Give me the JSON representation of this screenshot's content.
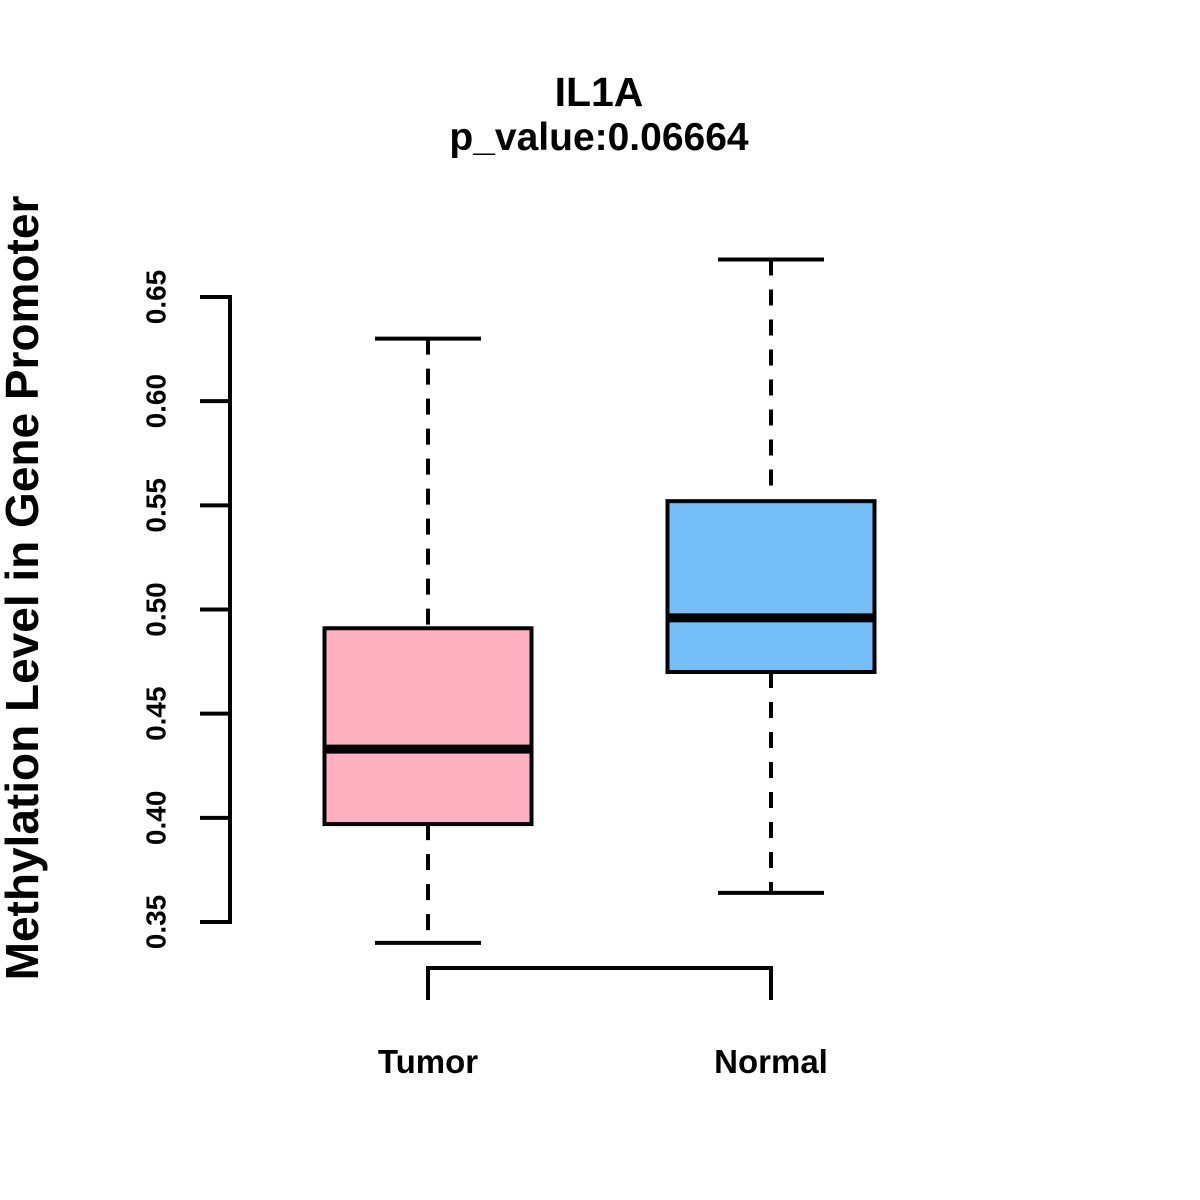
{
  "chart_data": {
    "type": "boxplot",
    "title": "IL1A",
    "subtitle": "p_value:0.06664",
    "xlabel": "",
    "ylabel": "Methylation Level in Gene Promoter",
    "y_axis": {
      "tick_values": [
        0.35,
        0.4,
        0.45,
        0.5,
        0.55,
        0.6,
        0.65
      ],
      "tick_labels": [
        "0.35",
        "0.40",
        "0.45",
        "0.50",
        "0.55",
        "0.60",
        "0.65"
      ],
      "range_shown": [
        0.34,
        0.668
      ],
      "tick_label_rotation_deg": 90
    },
    "categories": [
      "Tumor",
      "Normal"
    ],
    "groups": [
      {
        "label": "Tumor",
        "fill_color": "#FFB1C1",
        "whisker_low": 0.34,
        "q1": 0.397,
        "median": 0.433,
        "q3": 0.491,
        "whisker_high": 0.63
      },
      {
        "label": "Normal",
        "fill_color": "#74BFF8",
        "whisker_low": 0.364,
        "q1": 0.47,
        "median": 0.496,
        "q3": 0.552,
        "whisker_high": 0.668
      }
    ],
    "legend": "none",
    "grid": false,
    "stroke_color": "#000000",
    "background_color": "#FFFFFF",
    "comparison_bracket": {
      "between": [
        "Tumor",
        "Normal"
      ],
      "label": ""
    }
  }
}
